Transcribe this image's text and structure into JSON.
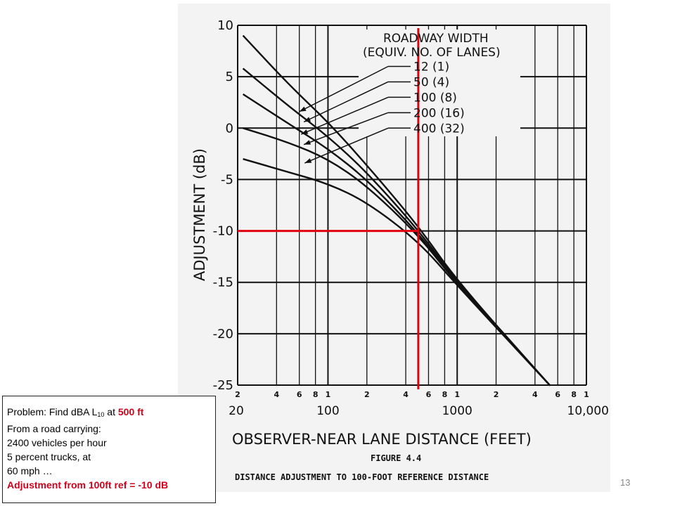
{
  "chart_data": {
    "type": "line",
    "title": "FIGURE 4.4",
    "caption": "DISTANCE ADJUSTMENT TO 100-FOOT REFERENCE DISTANCE",
    "xlabel": "OBSERVER-NEAR LANE DISTANCE (FEET)",
    "ylabel": "ADJUSTMENT (dB)",
    "xscale": "log",
    "xlim": [
      20,
      10000
    ],
    "ylim": [
      -25,
      10
    ],
    "grid": true,
    "x_major_ticks": [
      {
        "value": 20,
        "label": "20"
      },
      {
        "value": 100,
        "label": "100"
      },
      {
        "value": 1000,
        "label": "1000"
      },
      {
        "value": 10000,
        "label": "10,000"
      }
    ],
    "x_minor_ticks": [
      {
        "value": 20,
        "label": "2"
      },
      {
        "value": 40,
        "label": "4"
      },
      {
        "value": 60,
        "label": "6"
      },
      {
        "value": 80,
        "label": "8"
      },
      {
        "value": 100,
        "label": "1"
      },
      {
        "value": 200,
        "label": "2"
      },
      {
        "value": 400,
        "label": "4"
      },
      {
        "value": 600,
        "label": "6"
      },
      {
        "value": 800,
        "label": "8"
      },
      {
        "value": 1000,
        "label": "1"
      },
      {
        "value": 2000,
        "label": "2"
      },
      {
        "value": 4000,
        "label": "4"
      },
      {
        "value": 6000,
        "label": "6"
      },
      {
        "value": 8000,
        "label": "8"
      },
      {
        "value": 10000,
        "label": "1"
      }
    ],
    "y_ticks": [
      {
        "value": 10,
        "label": "10"
      },
      {
        "value": 5,
        "label": "5"
      },
      {
        "value": 0,
        "label": "0"
      },
      {
        "value": -5,
        "label": "-5"
      },
      {
        "value": -10,
        "label": "-10"
      },
      {
        "value": -15,
        "label": "-15"
      },
      {
        "value": -20,
        "label": "-20"
      },
      {
        "value": -25,
        "label": "-25"
      }
    ],
    "legend_title": [
      "ROADWAY WIDTH",
      "(EQUIV. NO. OF LANES)"
    ],
    "series": [
      {
        "name": "12 (1)",
        "label_y": 6,
        "x": [
          22,
          50,
          100,
          200,
          500,
          1000,
          5200
        ],
        "y": [
          9,
          4.2,
          0.6,
          -3.6,
          -9.5,
          -14.9,
          -25
        ]
      },
      {
        "name": "50 (4)",
        "label_y": 4.5,
        "x": [
          22,
          50,
          100,
          200,
          500,
          1000,
          5200
        ],
        "y": [
          5.8,
          2.1,
          -0.8,
          -4.3,
          -9.9,
          -15.0,
          -25
        ]
      },
      {
        "name": "100 (8)",
        "label_y": 3,
        "x": [
          22,
          50,
          100,
          200,
          500,
          1000,
          5200
        ],
        "y": [
          3.3,
          0.4,
          -2.0,
          -5.0,
          -10.2,
          -15.1,
          -25
        ]
      },
      {
        "name": "200 (16)",
        "label_y": 1.5,
        "x": [
          22,
          50,
          100,
          200,
          500,
          1000,
          5200
        ],
        "y": [
          0,
          -1.4,
          -3.0,
          -5.6,
          -10.4,
          -15.2,
          -25
        ]
      },
      {
        "name": "400 (32)",
        "label_y": 0,
        "x": [
          22,
          50,
          100,
          200,
          500,
          1000,
          5200
        ],
        "y": [
          -3.0,
          -4.3,
          -5.4,
          -7.2,
          -11.0,
          -15.3,
          -25
        ]
      }
    ],
    "arrow_tips": [
      {
        "x": 60,
        "y": 1.6
      },
      {
        "x": 65,
        "y": 0.6
      },
      {
        "x": 62,
        "y": -0.6
      },
      {
        "x": 65,
        "y": -1.6
      },
      {
        "x": 66,
        "y": -3.4
      }
    ],
    "annotation": {
      "color": "#e0000f",
      "x": 500,
      "y": -10
    }
  },
  "problem": {
    "line1_prefix": "Problem: Find dBA L",
    "line1_sub": "10",
    "line1_mid": " at ",
    "line1_highlight": "500 ft",
    "line2": "From a road carrying:",
    "line3": "2400 vehicles per hour",
    "line4": "5 percent trucks, at",
    "line5": "60 mph …",
    "line6": "Adjustment from 100ft ref = -10 dB"
  },
  "page_number": "13",
  "colors": {
    "highlight": "#d0021b",
    "annotation": "#e0000f",
    "ink": "#111111"
  }
}
